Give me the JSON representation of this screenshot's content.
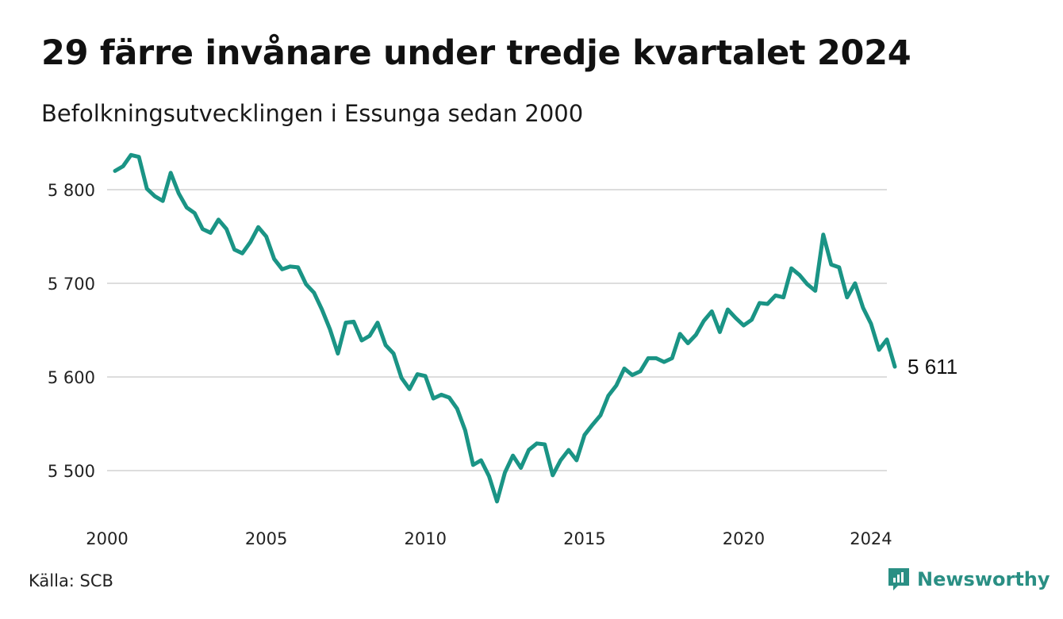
{
  "header": {
    "title": "29 färre invånare under tredje kvartalet 2024",
    "subtitle": "Befolkningsutvecklingen i Essunga sedan 2000"
  },
  "footer": {
    "source": "Källa: SCB",
    "brand": "Newsworthy"
  },
  "colors": {
    "line": "#1a9485",
    "grid": "#dddddd",
    "brand": "#2a8f84"
  },
  "chart_data": {
    "type": "line",
    "ylim": [
      5450,
      5850
    ],
    "yticks": [
      5500,
      5600,
      5700,
      5800
    ],
    "ytick_labels": [
      "5 500",
      "5 600",
      "5 700",
      "5 800"
    ],
    "xlim": [
      2000.0,
      2024.5
    ],
    "xticks": [
      2000,
      2005,
      2010,
      2015,
      2020,
      2024
    ],
    "xtick_labels": [
      "2000",
      "2005",
      "2010",
      "2015",
      "2020",
      "2024"
    ],
    "grid": "horizontal",
    "end_label": "5 611",
    "series": [
      {
        "values": [
          [
            2000.25,
            5820
          ],
          [
            2000.5,
            5825
          ],
          [
            2000.75,
            5837
          ],
          [
            2001.0,
            5835
          ],
          [
            2001.25,
            5801
          ],
          [
            2001.5,
            5793
          ],
          [
            2001.75,
            5788
          ],
          [
            2002.0,
            5818
          ],
          [
            2002.25,
            5796
          ],
          [
            2002.5,
            5781
          ],
          [
            2002.75,
            5775
          ],
          [
            2003.0,
            5758
          ],
          [
            2003.25,
            5754
          ],
          [
            2003.5,
            5768
          ],
          [
            2003.75,
            5758
          ],
          [
            2004.0,
            5736
          ],
          [
            2004.25,
            5732
          ],
          [
            2004.5,
            5744
          ],
          [
            2004.75,
            5760
          ],
          [
            2005.0,
            5750
          ],
          [
            2005.25,
            5726
          ],
          [
            2005.5,
            5715
          ],
          [
            2005.75,
            5718
          ],
          [
            2006.0,
            5717
          ],
          [
            2006.25,
            5699
          ],
          [
            2006.5,
            5690
          ],
          [
            2006.75,
            5672
          ],
          [
            2007.0,
            5651
          ],
          [
            2007.25,
            5625
          ],
          [
            2007.5,
            5658
          ],
          [
            2007.75,
            5659
          ],
          [
            2008.0,
            5639
          ],
          [
            2008.25,
            5644
          ],
          [
            2008.5,
            5658
          ],
          [
            2008.75,
            5634
          ],
          [
            2009.0,
            5625
          ],
          [
            2009.25,
            5599
          ],
          [
            2009.5,
            5587
          ],
          [
            2009.75,
            5603
          ],
          [
            2010.0,
            5601
          ],
          [
            2010.25,
            5577
          ],
          [
            2010.5,
            5581
          ],
          [
            2010.75,
            5578
          ],
          [
            2011.0,
            5566
          ],
          [
            2011.25,
            5543
          ],
          [
            2011.5,
            5506
          ],
          [
            2011.75,
            5511
          ],
          [
            2012.0,
            5494
          ],
          [
            2012.25,
            5467
          ],
          [
            2012.5,
            5498
          ],
          [
            2012.75,
            5516
          ],
          [
            2013.0,
            5503
          ],
          [
            2013.25,
            5522
          ],
          [
            2013.5,
            5529
          ],
          [
            2013.75,
            5528
          ],
          [
            2014.0,
            5495
          ],
          [
            2014.25,
            5511
          ],
          [
            2014.5,
            5522
          ],
          [
            2014.75,
            5511
          ],
          [
            2015.0,
            5538
          ],
          [
            2015.25,
            5549
          ],
          [
            2015.5,
            5559
          ],
          [
            2015.75,
            5580
          ],
          [
            2016.0,
            5591
          ],
          [
            2016.25,
            5609
          ],
          [
            2016.5,
            5602
          ],
          [
            2016.75,
            5606
          ],
          [
            2017.0,
            5620
          ],
          [
            2017.25,
            5620
          ],
          [
            2017.5,
            5616
          ],
          [
            2017.75,
            5620
          ],
          [
            2018.0,
            5646
          ],
          [
            2018.25,
            5636
          ],
          [
            2018.5,
            5645
          ],
          [
            2018.75,
            5660
          ],
          [
            2019.0,
            5670
          ],
          [
            2019.25,
            5648
          ],
          [
            2019.5,
            5672
          ],
          [
            2019.75,
            5663
          ],
          [
            2020.0,
            5655
          ],
          [
            2020.25,
            5661
          ],
          [
            2020.5,
            5679
          ],
          [
            2020.75,
            5678
          ],
          [
            2021.0,
            5687
          ],
          [
            2021.25,
            5685
          ],
          [
            2021.5,
            5716
          ],
          [
            2021.75,
            5709
          ],
          [
            2022.0,
            5699
          ],
          [
            2022.25,
            5692
          ],
          [
            2022.5,
            5752
          ],
          [
            2022.75,
            5720
          ],
          [
            2023.0,
            5717
          ],
          [
            2023.25,
            5685
          ],
          [
            2023.5,
            5700
          ],
          [
            2023.75,
            5674
          ],
          [
            2024.0,
            5657
          ],
          [
            2024.25,
            5629
          ],
          [
            2024.5,
            5640
          ],
          [
            2024.75,
            5611
          ]
        ]
      }
    ]
  }
}
